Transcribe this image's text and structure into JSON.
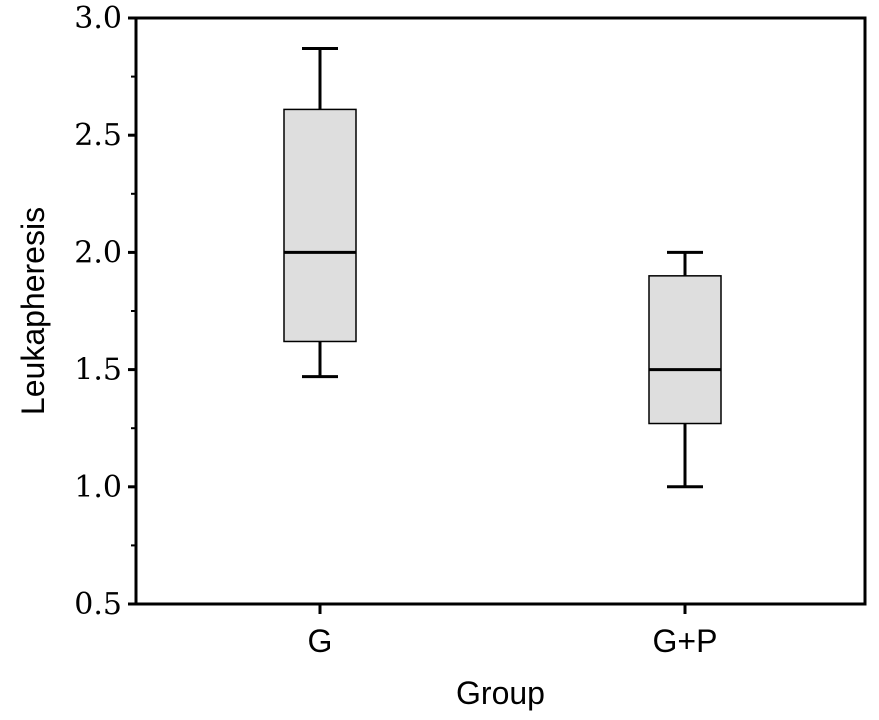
{
  "chart_data": {
    "type": "box",
    "title": "",
    "xlabel": "Group",
    "ylabel": "Leukapheresis",
    "ylim": [
      0.5,
      3.0
    ],
    "yticks": [
      "0.5",
      "1.0",
      "1.5",
      "2.0",
      "2.5",
      "3.0"
    ],
    "yminor_step": 0.25,
    "grid": false,
    "categories": [
      "G",
      "G+P"
    ],
    "boxes": [
      {
        "category": "G",
        "whisker_low": 1.47,
        "q1": 1.62,
        "median": 2.0,
        "q3": 2.61,
        "whisker_high": 2.87
      },
      {
        "category": "G+P",
        "whisker_low": 1.0,
        "q1": 1.27,
        "median": 1.5,
        "q3": 1.9,
        "whisker_high": 2.0
      }
    ],
    "colors": {
      "box_fill": "#dedede",
      "line": "#000000"
    }
  }
}
